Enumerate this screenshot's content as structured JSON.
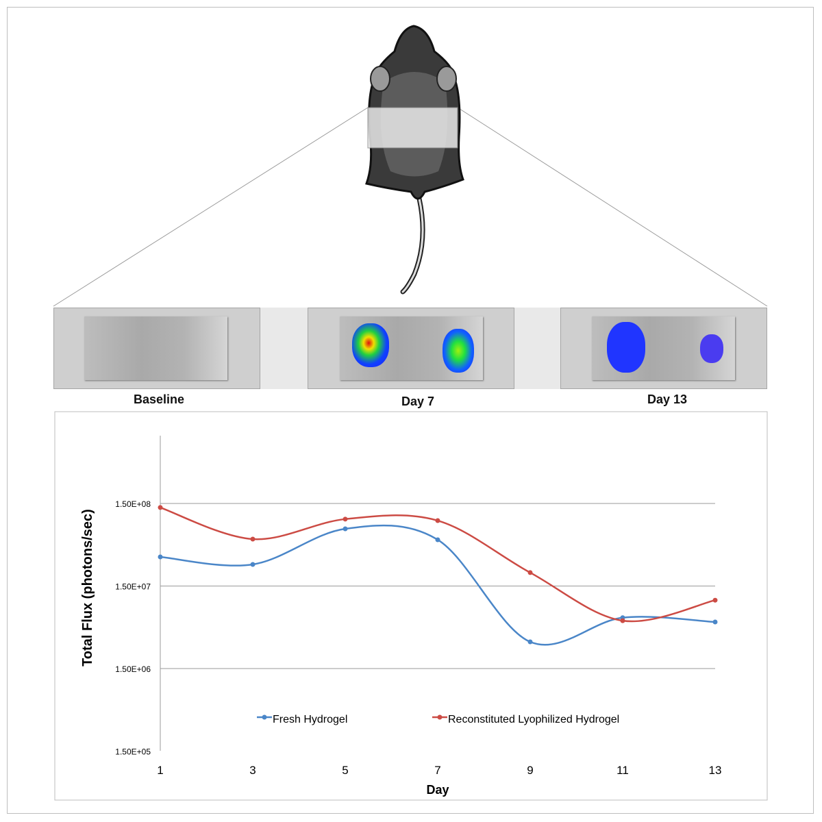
{
  "panels": [
    {
      "label": "Baseline"
    },
    {
      "label": "Day 7"
    },
    {
      "label": "Day 13"
    }
  ],
  "colors": {
    "fresh": "#4a86c8",
    "reconstituted": "#cc4b44",
    "grid": "#9a9a9a"
  },
  "chart_data": {
    "type": "line",
    "title": "",
    "xlabel": "Day",
    "ylabel": "Total Flux (photons/sec)",
    "yscale": "log",
    "ylim": [
      150000,
      1500000000
    ],
    "grid": true,
    "legend": "bottom-inside",
    "x": [
      1,
      3,
      5,
      7,
      9,
      11,
      13
    ],
    "x_tick_labels": [
      "1",
      "3",
      "5",
      "7",
      "9",
      "11",
      "13"
    ],
    "y_ticks": [
      150000,
      1500000,
      15000000,
      150000000
    ],
    "y_tick_labels": [
      "1.50E+05",
      "1.50E+06",
      "1.50E+07",
      "1.50E+08"
    ],
    "series": [
      {
        "name": "Fresh Hydrogel",
        "values": [
          33800000,
          27400000,
          74000000,
          54500000,
          3160000,
          6200000,
          5500000
        ]
      },
      {
        "name": "Reconstituted Lyophilized Hydrogel",
        "values": [
          134000000,
          55500000,
          97000000,
          93000000,
          21800000,
          5700000,
          10100000
        ]
      }
    ]
  }
}
